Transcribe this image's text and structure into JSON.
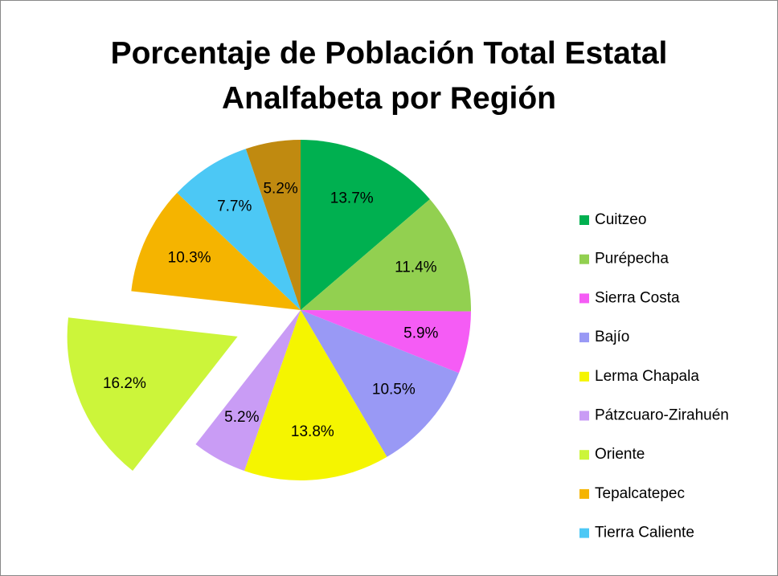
{
  "chart_data": {
    "type": "pie",
    "title": "Porcentaje  de Población Total Estatal Analfabeta por Región",
    "categories": [
      "Cuitzeo",
      "Purépecha",
      "Sierra Costa",
      "Bajío",
      "Lerma Chapala",
      "Pátzcuaro-Zirahuén",
      "Oriente",
      "Tepalcatepec",
      "Tierra Caliente",
      null
    ],
    "values": [
      13.7,
      11.4,
      5.9,
      10.5,
      13.8,
      5.2,
      16.2,
      10.3,
      7.7,
      5.2
    ],
    "value_labels": [
      "13.7%",
      "11.4%",
      "5.9%",
      "10.5%",
      "13.8%",
      "5.2%",
      "16.2%",
      "10.3%",
      "7.7%",
      "5.2%"
    ],
    "colors": [
      "#00b050",
      "#92d050",
      "#f55cf5",
      "#9999f5",
      "#f5f500",
      "#c99cf5",
      "#ccf53a",
      "#f5b400",
      "#4cc8f5",
      "#c08a10"
    ],
    "exploded": [
      "Oriente"
    ],
    "legend": "right"
  }
}
